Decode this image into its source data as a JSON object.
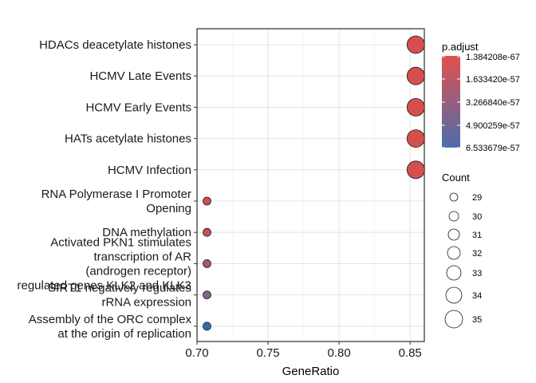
{
  "chart_data": {
    "type": "scatter",
    "xlabel": "GeneRatio",
    "xlim": [
      0.7,
      0.86
    ],
    "xticks": [
      "0.70",
      "0.75",
      "0.80",
      "0.85"
    ],
    "xtick_values": [
      0.7,
      0.75,
      0.8,
      0.85
    ],
    "grid": true,
    "legend_position": "right",
    "categories": [
      "HDACs deacetylate histones",
      "HCMV Late Events",
      "HCMV Early Events",
      "HATs acetylate histones",
      "HCMV Infection",
      "RNA Polymerase I Promoter\nOpening",
      "DNA methylation",
      "Activated PKN1 stimulates\ntranscription of AR\n(androgen receptor)\nregulated genes KLK2 and KLK3",
      "SIRT1 negatively regulates\nrRNA expression",
      "Assembly of the ORC complex\nat the origin of replication"
    ],
    "points": [
      {
        "y": "HDACs deacetylate histones",
        "x": 0.854,
        "count": 35,
        "p_adjust": 1.5e-67,
        "color": "#d64f4f"
      },
      {
        "y": "HCMV Late Events",
        "x": 0.854,
        "count": 35,
        "p_adjust": 1.5e-67,
        "color": "#d64f4f"
      },
      {
        "y": "HCMV Early Events",
        "x": 0.854,
        "count": 35,
        "p_adjust": 1.5e-67,
        "color": "#d64f4f"
      },
      {
        "y": "HATs acetylate histones",
        "x": 0.854,
        "count": 35,
        "p_adjust": 1.5e-67,
        "color": "#d64f4f"
      },
      {
        "y": "HCMV Infection",
        "x": 0.854,
        "count": 35,
        "p_adjust": 1.5e-67,
        "color": "#d64f4f"
      },
      {
        "y": "RNA Polymerase I Promoter\nOpening",
        "x": 0.707,
        "count": 29,
        "p_adjust": 1e-57,
        "color": "#d04f52"
      },
      {
        "y": "DNA methylation",
        "x": 0.707,
        "count": 29,
        "p_adjust": 1.5e-57,
        "color": "#c35258"
      },
      {
        "y": "Activated PKN1 stimulates\ntranscription of AR\n(androgen receptor)\nregulated genes KLK2 and KLK3",
        "x": 0.707,
        "count": 29,
        "p_adjust": 3e-57,
        "color": "#a6586b"
      },
      {
        "y": "SIRT1 negatively regulates\nrRNA expression",
        "x": 0.707,
        "count": 29,
        "p_adjust": 4.5e-57,
        "color": "#82628a"
      },
      {
        "y": "Assembly of the ORC complex\nat the origin of replication",
        "x": 0.707,
        "count": 29,
        "p_adjust": 6.5e-57,
        "color": "#2f6fb4"
      }
    ],
    "color_legend": {
      "title": "p.adjust",
      "labels": [
        "1.384208e-67",
        "1.633420e-57",
        "3.266840e-57",
        "4.900259e-57",
        "6.533679e-57"
      ],
      "colors": [
        "#e0514e",
        "#4d6cae"
      ]
    },
    "size_legend": {
      "title": "Count",
      "values": [
        29,
        30,
        31,
        32,
        33,
        34,
        35
      ],
      "labels": [
        "29",
        "30",
        "31",
        "32",
        "33",
        "34",
        "35"
      ]
    }
  }
}
